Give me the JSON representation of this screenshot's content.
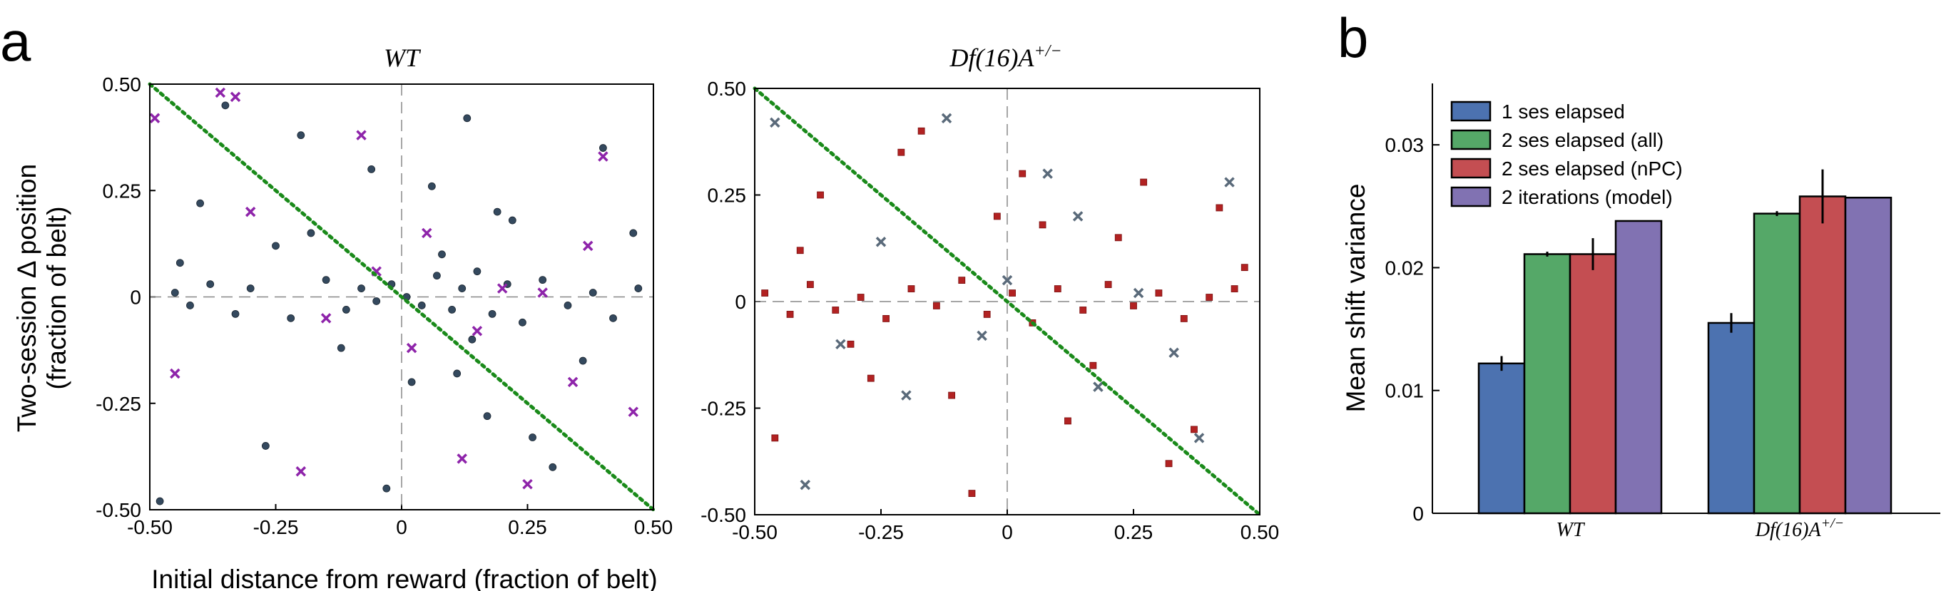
{
  "panels": {
    "a_label": "a",
    "b_label": "b"
  },
  "shared": {
    "xlabel": "Initial distance from reward  (fraction of belt)",
    "ylabel_line1": "Two-session Δ position",
    "ylabel_line2": "(fraction of belt)"
  },
  "chart_data": [
    {
      "type": "scatter",
      "title": "WT",
      "xlim": [
        -0.5,
        0.5
      ],
      "ylim": [
        -0.5,
        0.5
      ],
      "xticks": [
        "-0.50",
        "-0.25",
        "0",
        "0.25",
        "0.50"
      ],
      "yticks": [
        "0.50",
        "0.25",
        "0",
        "-0.25",
        "-0.50"
      ],
      "reference_line": {
        "style": "dotted",
        "color": "#1a8a1a",
        "from": [
          -0.5,
          0.5
        ],
        "to": [
          0.5,
          -0.5
        ]
      },
      "point_color": "#34495e",
      "cross_color": "#8e24aa",
      "series": [
        {
          "marker": "circle",
          "x": [
            -0.45,
            -0.42,
            -0.38,
            -0.33,
            -0.3,
            -0.22,
            -0.15,
            -0.11,
            -0.08,
            -0.05,
            -0.02,
            0.01,
            0.04,
            0.07,
            0.1,
            0.12,
            0.15,
            0.18,
            0.21,
            0.24,
            0.28,
            0.33,
            0.38,
            0.42,
            0.47,
            -0.48,
            -0.4,
            -0.27,
            -0.18,
            -0.12,
            -0.06,
            0.02,
            0.08,
            0.13,
            0.17,
            0.22,
            0.3,
            0.4,
            0.46,
            -0.35,
            -0.2,
            -0.03,
            0.06,
            0.11,
            0.19,
            0.26,
            0.36,
            -0.44,
            -0.25,
            0.14
          ],
          "y": [
            0.01,
            -0.02,
            0.03,
            -0.04,
            0.02,
            -0.05,
            0.04,
            -0.03,
            0.02,
            -0.01,
            0.03,
            0.0,
            -0.02,
            0.05,
            -0.03,
            0.02,
            0.06,
            -0.04,
            0.03,
            -0.06,
            0.04,
            -0.02,
            0.01,
            -0.05,
            0.02,
            -0.48,
            0.22,
            -0.35,
            0.15,
            -0.12,
            0.3,
            -0.2,
            0.1,
            0.42,
            -0.28,
            0.18,
            -0.4,
            0.35,
            0.15,
            0.45,
            0.38,
            -0.45,
            0.26,
            -0.18,
            0.2,
            -0.33,
            -0.15,
            0.08,
            0.12,
            -0.1
          ]
        },
        {
          "marker": "cross",
          "x": [
            -0.49,
            -0.36,
            -0.33,
            -0.2,
            -0.08,
            0.05,
            0.12,
            0.25,
            0.34,
            0.4,
            0.46,
            -0.45,
            -0.15,
            0.02,
            0.2,
            0.37,
            -0.3,
            -0.05,
            0.15,
            0.28
          ],
          "y": [
            0.42,
            0.48,
            0.47,
            -0.41,
            0.38,
            0.15,
            -0.38,
            -0.44,
            -0.2,
            0.33,
            -0.27,
            -0.18,
            -0.05,
            -0.12,
            0.02,
            0.12,
            0.2,
            0.06,
            -0.08,
            0.01
          ]
        }
      ]
    },
    {
      "type": "scatter",
      "title": "Df(16)A",
      "title_sup": "+/−",
      "xlim": [
        -0.5,
        0.5
      ],
      "ylim": [
        -0.5,
        0.5
      ],
      "xticks": [
        "-0.50",
        "-0.25",
        "0",
        "0.25",
        "0.50"
      ],
      "yticks": [
        "0.50",
        "0.25",
        "0",
        "-0.25",
        "-0.50"
      ],
      "reference_line": {
        "style": "dotted",
        "color": "#1a8a1a",
        "from": [
          -0.5,
          0.5
        ],
        "to": [
          0.5,
          -0.5
        ]
      },
      "point_color": "#b22222",
      "cross_color": "#5a6a7a",
      "series": [
        {
          "marker": "square",
          "x": [
            -0.48,
            -0.43,
            -0.39,
            -0.34,
            -0.29,
            -0.24,
            -0.19,
            -0.14,
            -0.09,
            -0.04,
            0.01,
            0.05,
            0.1,
            0.15,
            0.2,
            0.25,
            0.3,
            0.35,
            0.4,
            0.45,
            -0.46,
            -0.37,
            -0.27,
            -0.17,
            -0.07,
            0.03,
            0.12,
            0.22,
            0.32,
            0.42,
            -0.41,
            -0.31,
            -0.21,
            -0.11,
            0.07,
            0.17,
            0.27,
            0.37,
            0.47,
            -0.02
          ],
          "y": [
            0.02,
            -0.03,
            0.04,
            -0.02,
            0.01,
            -0.04,
            0.03,
            -0.01,
            0.05,
            -0.03,
            0.02,
            -0.05,
            0.03,
            -0.02,
            0.04,
            -0.01,
            0.02,
            -0.04,
            0.01,
            0.03,
            -0.32,
            0.25,
            -0.18,
            0.4,
            -0.45,
            0.3,
            -0.28,
            0.15,
            -0.38,
            0.22,
            0.12,
            -0.1,
            0.35,
            -0.22,
            0.18,
            -0.15,
            0.28,
            -0.3,
            0.08,
            0.2
          ]
        },
        {
          "marker": "cross",
          "x": [
            -0.46,
            -0.33,
            -0.25,
            -0.12,
            -0.05,
            0.08,
            0.18,
            0.26,
            0.38,
            0.44,
            -0.4,
            -0.2,
            0.0,
            0.14,
            0.33
          ],
          "y": [
            0.42,
            -0.1,
            0.14,
            0.43,
            -0.08,
            0.3,
            -0.2,
            0.02,
            -0.32,
            0.28,
            -0.43,
            -0.22,
            0.05,
            0.2,
            -0.12
          ]
        }
      ]
    },
    {
      "type": "bar",
      "categories": [
        "WT",
        "Df(16)A"
      ],
      "category_sup": [
        "",
        "+/−"
      ],
      "ylabel": "Mean shift variance",
      "ylim": [
        0,
        0.035
      ],
      "yticks": [
        "0",
        "0.01",
        "0.02",
        "0.03"
      ],
      "legend_placement": "top-left",
      "series": [
        {
          "name": "1 ses elapsed",
          "color": "#4c72b0",
          "values": [
            0.0122,
            0.0155
          ],
          "errors": [
            0.0006,
            0.0008
          ]
        },
        {
          "name": "2 ses elapsed (all)",
          "color": "#55a868",
          "values": [
            0.0211,
            0.0244
          ],
          "errors": [
            0.0002,
            0.0002
          ]
        },
        {
          "name": "2 ses elapsed (nPC)",
          "color": "#c44e52",
          "values": [
            0.0211,
            0.0258
          ],
          "errors": [
            0.0013,
            0.0022
          ]
        },
        {
          "name": "2 iterations (model)",
          "color": "#8172b2",
          "values": [
            0.0238,
            0.0257
          ],
          "errors": [
            0,
            0
          ]
        }
      ]
    }
  ]
}
